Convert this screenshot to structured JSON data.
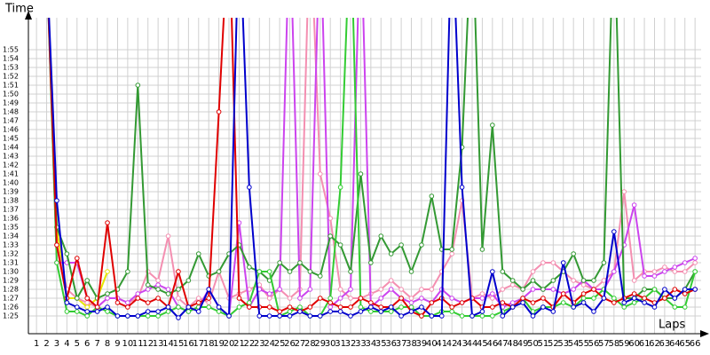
{
  "chart_data": {
    "type": "line",
    "y_label": "Time",
    "x_label": "Laps",
    "xlim": [
      0.2,
      66.6
    ],
    "ylim": [
      83,
      118.6
    ],
    "grid": true,
    "xticks": [
      1,
      2,
      3,
      4,
      5,
      6,
      7,
      8,
      9,
      10,
      11,
      12,
      13,
      14,
      15,
      16,
      17,
      18,
      19,
      20,
      21,
      22,
      23,
      24,
      25,
      26,
      27,
      28,
      29,
      30,
      31,
      32,
      33,
      34,
      35,
      36,
      37,
      38,
      39,
      40,
      41,
      42,
      43,
      44,
      45,
      46,
      47,
      48,
      49,
      50,
      51,
      52,
      53,
      54,
      55,
      56,
      57,
      58,
      59,
      60,
      61,
      62,
      63,
      64,
      65,
      66
    ],
    "yticks": [
      {
        "value": 85,
        "label": "1:25"
      },
      {
        "value": 86,
        "label": "1:26"
      },
      {
        "value": 87,
        "label": "1:27"
      },
      {
        "value": 88,
        "label": "1:28"
      },
      {
        "value": 89,
        "label": "1:29"
      },
      {
        "value": 90,
        "label": "1:30"
      },
      {
        "value": 91,
        "label": "1:31"
      },
      {
        "value": 92,
        "label": "1:32"
      },
      {
        "value": 93,
        "label": "1:33"
      },
      {
        "value": 94,
        "label": "1:34"
      },
      {
        "value": 95,
        "label": "1:35"
      },
      {
        "value": 96,
        "label": "1:36"
      },
      {
        "value": 97,
        "label": "1:37"
      },
      {
        "value": 98,
        "label": "1:38"
      },
      {
        "value": 99,
        "label": "1:39"
      },
      {
        "value": 100,
        "label": "1:40"
      },
      {
        "value": 101,
        "label": "1:41"
      },
      {
        "value": 102,
        "label": "1:42"
      },
      {
        "value": 103,
        "label": "1:43"
      },
      {
        "value": 104,
        "label": "1:44"
      },
      {
        "value": 105,
        "label": "1:45"
      },
      {
        "value": 106,
        "label": "1:46"
      },
      {
        "value": 107,
        "label": "1:47"
      },
      {
        "value": 108,
        "label": "1:48"
      },
      {
        "value": 109,
        "label": "1:49"
      },
      {
        "value": 110,
        "label": "1:50"
      },
      {
        "value": 111,
        "label": "1:51"
      },
      {
        "value": 112,
        "label": "1:52"
      },
      {
        "value": 113,
        "label": "1:53"
      },
      {
        "value": 114,
        "label": "1:54"
      },
      {
        "value": 115,
        "label": "1:55"
      }
    ],
    "x": [
      1,
      2,
      3,
      4,
      5,
      6,
      7,
      8,
      9,
      10,
      11,
      12,
      13,
      14,
      15,
      16,
      17,
      18,
      19,
      20,
      21,
      22,
      23,
      24,
      25,
      26,
      27,
      28,
      29,
      30,
      31,
      32,
      33,
      34,
      35,
      36,
      37,
      38,
      39,
      40,
      41,
      42,
      43,
      44,
      45,
      46,
      47,
      48,
      49,
      50,
      51,
      52,
      53,
      54,
      55,
      56,
      57,
      58,
      59,
      60,
      61,
      62,
      63,
      64,
      65,
      66
    ],
    "series": [
      {
        "color": "#e6e600",
        "values": [
          null,
          125,
          95,
          87,
          87,
          86,
          87,
          90,
          null,
          null,
          null,
          null,
          null,
          null,
          null,
          null,
          null,
          null,
          null,
          null,
          null,
          null,
          null,
          null,
          null,
          null,
          null,
          null,
          null,
          null,
          null,
          null,
          null,
          null,
          null,
          null,
          null,
          null,
          null,
          null,
          null,
          null,
          null,
          null,
          null,
          null,
          null,
          null,
          null,
          null,
          null,
          null,
          null,
          null,
          null,
          null,
          null,
          null,
          null,
          null,
          null,
          null,
          null,
          null,
          null,
          null
        ]
      },
      {
        "color": "#f48fb1",
        "values": [
          null,
          125,
          93,
          88,
          87,
          86.5,
          86,
          87,
          87,
          86.5,
          87,
          90,
          89,
          94,
          87,
          86,
          87,
          86.5,
          90,
          87,
          87.5,
          88,
          88.5,
          87,
          88,
          87,
          88,
          130,
          101,
          96,
          88,
          87,
          87,
          87.5,
          88,
          89,
          88,
          87,
          88,
          88,
          90,
          92,
          98,
          87,
          87.5,
          87,
          88,
          88.5,
          88,
          90,
          91,
          91,
          90,
          89,
          88.5,
          88,
          89,
          90,
          99,
          89,
          90,
          90,
          90.5,
          90,
          90,
          91
        ]
      },
      {
        "color": "#cc44ee",
        "values": [
          null,
          125,
          91,
          91,
          91,
          87,
          86,
          87,
          87,
          86.5,
          87.5,
          88,
          88.5,
          88,
          86,
          85.5,
          86,
          88,
          86,
          85,
          95.5,
          86,
          88,
          87.5,
          88,
          130,
          87,
          88,
          130,
          86,
          87,
          88,
          130,
          86,
          87,
          88,
          87,
          86.5,
          87,
          86.5,
          88,
          87,
          86.5,
          87,
          87,
          87.5,
          86,
          86.5,
          87,
          88,
          88,
          88,
          87.5,
          88,
          89,
          88,
          88,
          90,
          93,
          97.5,
          89.5,
          89.5,
          90,
          90.5,
          91,
          91.5
        ]
      },
      {
        "color": "#339933",
        "values": [
          null,
          125,
          95,
          92,
          87,
          89,
          87,
          87.5,
          88,
          90,
          111,
          88.5,
          88,
          87.5,
          88,
          89,
          92,
          89.5,
          90,
          92,
          93,
          90.5,
          90,
          89,
          91,
          90,
          91,
          90,
          89.5,
          94,
          93,
          90,
          101,
          91,
          94,
          92,
          93,
          90,
          93,
          98.5,
          92.5,
          92.5,
          104,
          130,
          92.5,
          106.5,
          90,
          89,
          88,
          89,
          88,
          89,
          90,
          92,
          89,
          89,
          91,
          130,
          87,
          87,
          88,
          88,
          87,
          87,
          88,
          90
        ]
      },
      {
        "color": "#33cc33",
        "values": [
          null,
          125,
          91,
          85.5,
          85.5,
          85,
          86,
          85.5,
          85,
          85,
          85,
          85,
          85,
          85.5,
          86,
          85.5,
          86,
          86,
          85.5,
          85,
          86,
          86.5,
          90,
          90,
          85,
          85.5,
          86,
          85,
          85,
          87,
          99.5,
          130,
          86,
          85.5,
          85.5,
          85.5,
          86,
          86,
          85,
          85,
          85.5,
          85.5,
          85,
          85,
          85,
          85,
          85.5,
          86,
          87,
          85.5,
          86,
          86,
          86.5,
          86,
          87,
          87,
          88,
          87,
          86,
          86.5,
          87,
          88,
          87,
          86,
          86,
          90
        ]
      },
      {
        "color": "#e00000",
        "values": [
          null,
          125,
          93,
          87,
          91.5,
          87,
          86,
          95.5,
          86.5,
          86,
          87,
          86.5,
          87,
          86,
          90,
          86,
          86.5,
          87,
          108,
          130,
          87,
          86,
          86,
          86,
          85.5,
          86,
          85.5,
          86,
          87,
          86.5,
          86,
          86,
          87,
          86.5,
          86,
          86,
          87,
          85.5,
          85,
          86.5,
          87,
          86,
          86.5,
          87,
          86,
          86,
          86.5,
          86,
          87,
          86.5,
          87,
          86,
          87.5,
          86.5,
          87.5,
          88,
          87,
          86.5,
          87,
          87.5,
          87,
          86.5,
          87,
          88,
          87.5,
          88
        ]
      },
      {
        "color": "#0000cc",
        "values": [
          null,
          125,
          98,
          86.5,
          86,
          85.5,
          85.5,
          86,
          85,
          85,
          85,
          85.5,
          85.5,
          86,
          84.8,
          86,
          85.5,
          88,
          86,
          85,
          130,
          99.5,
          85,
          85,
          85,
          85,
          85.5,
          85,
          85,
          85.5,
          85.5,
          85,
          85.5,
          86,
          85.5,
          86,
          85,
          85.5,
          86,
          85,
          85,
          130,
          99.5,
          85,
          85.5,
          90,
          85,
          86,
          86.5,
          85,
          86,
          85.5,
          91,
          86,
          86.5,
          85.5,
          87,
          94.5,
          86.5,
          87,
          86.5,
          86,
          88,
          87,
          88,
          88
        ]
      }
    ]
  }
}
